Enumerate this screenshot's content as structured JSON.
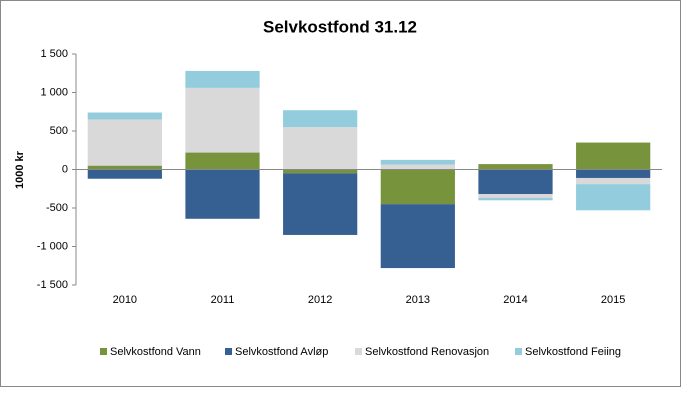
{
  "chart_data": {
    "type": "stacked_bar",
    "title": "Selvkostfond 31.12",
    "y_label": "1000 kr",
    "categories": [
      "2010",
      "2011",
      "2012",
      "2013",
      "2014",
      "2015"
    ],
    "series": [
      {
        "name": "Selvkostfond Vann",
        "color": "#77933c",
        "values": [
          50,
          220,
          -50,
          -450,
          70,
          350
        ]
      },
      {
        "name": "Selvkostfond Avløp",
        "color": "#376092",
        "values": [
          -120,
          -640,
          -800,
          -830,
          -320,
          -110
        ]
      },
      {
        "name": "Selvkostfond Renovasjon",
        "color": "#d9d9d9",
        "values": [
          600,
          840,
          550,
          65,
          -50,
          -80
        ]
      },
      {
        "name": "Selvkostfond Feiing",
        "color": "#93cddd",
        "values": [
          90,
          220,
          220,
          60,
          -30,
          -340
        ]
      }
    ],
    "ylim": [
      -1500,
      1500
    ],
    "yticks": [
      {
        "value": -1500,
        "label": "-1 500"
      },
      {
        "value": -1000,
        "label": "-1 000"
      },
      -500,
      0,
      500,
      {
        "value": 1000,
        "label": "1 000"
      },
      {
        "value": 1500,
        "label": "1 500"
      }
    ],
    "legend": "bottom"
  }
}
